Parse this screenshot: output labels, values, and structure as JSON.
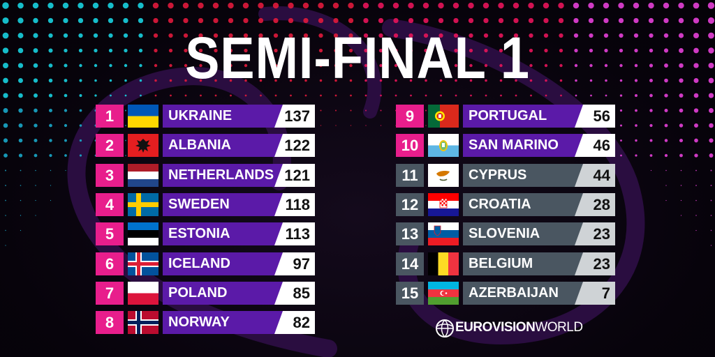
{
  "title": "SEMI-FINAL 1",
  "colors": {
    "qualified_rank": "#e81e8c",
    "qualified_name": "#5b1aa8",
    "non_qualified": "#4a5661",
    "score_bg": "#ffffff",
    "score_bg_nq": "#cfd3d6"
  },
  "results": [
    {
      "rank": "1",
      "country": "UKRAINE",
      "score": "137",
      "flag": "ukraine",
      "qualified": true
    },
    {
      "rank": "2",
      "country": "ALBANIA",
      "score": "122",
      "flag": "albania",
      "qualified": true
    },
    {
      "rank": "3",
      "country": "NETHERLANDS",
      "score": "121",
      "flag": "netherlands",
      "qualified": true
    },
    {
      "rank": "4",
      "country": "SWEDEN",
      "score": "118",
      "flag": "sweden",
      "qualified": true
    },
    {
      "rank": "5",
      "country": "ESTONIA",
      "score": "113",
      "flag": "estonia",
      "qualified": true
    },
    {
      "rank": "6",
      "country": "ICELAND",
      "score": "97",
      "flag": "iceland",
      "qualified": true
    },
    {
      "rank": "7",
      "country": "POLAND",
      "score": "85",
      "flag": "poland",
      "qualified": true
    },
    {
      "rank": "8",
      "country": "NORWAY",
      "score": "82",
      "flag": "norway",
      "qualified": true
    },
    {
      "rank": "9",
      "country": "PORTUGAL",
      "score": "56",
      "flag": "portugal",
      "qualified": true
    },
    {
      "rank": "10",
      "country": "SAN MARINO",
      "score": "46",
      "flag": "san-marino",
      "qualified": true
    },
    {
      "rank": "11",
      "country": "CYPRUS",
      "score": "44",
      "flag": "cyprus",
      "qualified": false
    },
    {
      "rank": "12",
      "country": "CROATIA",
      "score": "28",
      "flag": "croatia",
      "qualified": false
    },
    {
      "rank": "13",
      "country": "SLOVENIA",
      "score": "23",
      "flag": "slovenia",
      "qualified": false
    },
    {
      "rank": "14",
      "country": "BELGIUM",
      "score": "23",
      "flag": "belgium",
      "qualified": false
    },
    {
      "rank": "15",
      "country": "AZERBAIJAN",
      "score": "7",
      "flag": "azerbaijan",
      "qualified": false
    }
  ],
  "logo": {
    "bold": "EUROVISION",
    "light": "WORLD",
    "icon": "globe-logo-icon"
  }
}
